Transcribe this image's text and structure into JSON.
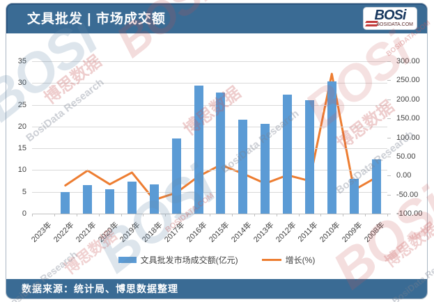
{
  "header": {
    "title": "文具批发 | 市场成交额"
  },
  "brand": {
    "logo_text": "BOSi",
    "site_text": "BOSIDATA.COM"
  },
  "footer": {
    "source": "数据来源：统计局、博思数据整理"
  },
  "watermark": {
    "logo": "BOSi",
    "cn": "博思数据",
    "en": "BosiData Research",
    "site": "BOSIDATA.COM"
  },
  "colors": {
    "band": "#3a6b94",
    "bar": "#5b9bd5",
    "line": "#ed7d31",
    "grid": "#d9d9d9",
    "axis_text": "#404040"
  },
  "chart_data": {
    "type": "bar",
    "title": "文具批发 | 市场成交额",
    "categories": [
      "2023年",
      "2022年",
      "2021年",
      "2020年",
      "2019年",
      "2018年",
      "2017年",
      "2016年",
      "2015年",
      "2014年",
      "2013年",
      "2012年",
      "2011年",
      "2010年",
      "2009年",
      "2008年"
    ],
    "series": [
      {
        "name": "文具批发市场成交额(亿元)",
        "type": "bar",
        "axis": "left",
        "values": [
          null,
          4.9,
          6.6,
          5.6,
          7.4,
          6.7,
          17.2,
          29.4,
          27.8,
          21.5,
          20.6,
          27.3,
          26.1,
          30.3,
          8.0,
          12.5
        ]
      },
      {
        "name": "增长(%)",
        "type": "line",
        "axis": "right",
        "values": [
          null,
          -26,
          13,
          -23,
          8,
          -64,
          -45,
          -2,
          28,
          5,
          -21,
          1,
          -14,
          267,
          -38,
          -5
        ]
      }
    ],
    "y_left": {
      "min": 0,
      "max": 35,
      "ticks": [
        0,
        5,
        10,
        15,
        20,
        25,
        30,
        35
      ]
    },
    "y_right": {
      "min": -100,
      "max": 300,
      "tick_labels": [
        "300.00",
        "250.00",
        "200.00",
        "150.00",
        "100.00",
        "50.00",
        "0.00",
        "-50.00",
        "-100.00"
      ],
      "tick_values": [
        300,
        250,
        200,
        150,
        100,
        50,
        0,
        -50,
        -100
      ]
    },
    "legend_position": "bottom",
    "grid": true
  }
}
